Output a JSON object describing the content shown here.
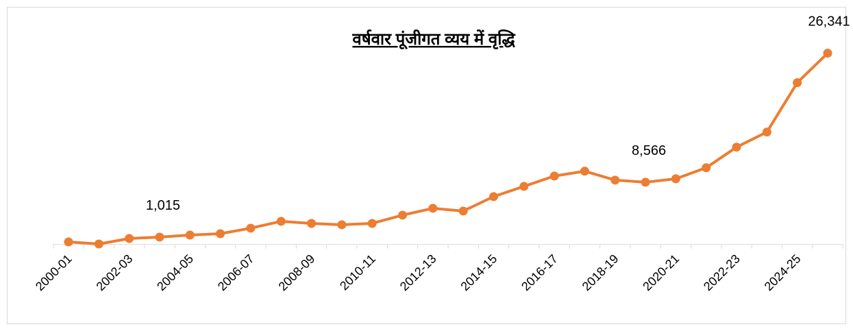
{
  "chart_data": {
    "type": "line",
    "title": "वर्षवार पूंजीगत व्यय में वृद्धि",
    "categories": [
      "2000-01",
      null,
      "2002-03",
      null,
      "2004-05",
      null,
      "2006-07",
      null,
      "2008-09",
      null,
      "2010-11",
      null,
      "2012-13",
      null,
      "2014-15",
      null,
      "2016-17",
      null,
      "2018-19",
      null,
      "2020-21",
      null,
      "2022-23",
      null,
      "2024-25",
      null
    ],
    "series": [
      {
        "name": null,
        "color": "#ed7d31",
        "values": [
          350,
          66,
          822,
          1015,
          1295,
          1484,
          2240,
          3185,
          2900,
          2712,
          2900,
          4035,
          4980,
          4600,
          6590,
          8000,
          9420,
          10090,
          8860,
          8566,
          9040,
          10560,
          13400,
          15480,
          22280,
          26341
        ],
        "value_labels": [
          null,
          null,
          null,
          "1,015",
          null,
          null,
          null,
          null,
          null,
          null,
          null,
          null,
          null,
          null,
          null,
          null,
          null,
          null,
          null,
          "8,566",
          null,
          null,
          null,
          null,
          null,
          "26,341"
        ]
      }
    ],
    "ylim": [
      0,
      28000
    ]
  }
}
